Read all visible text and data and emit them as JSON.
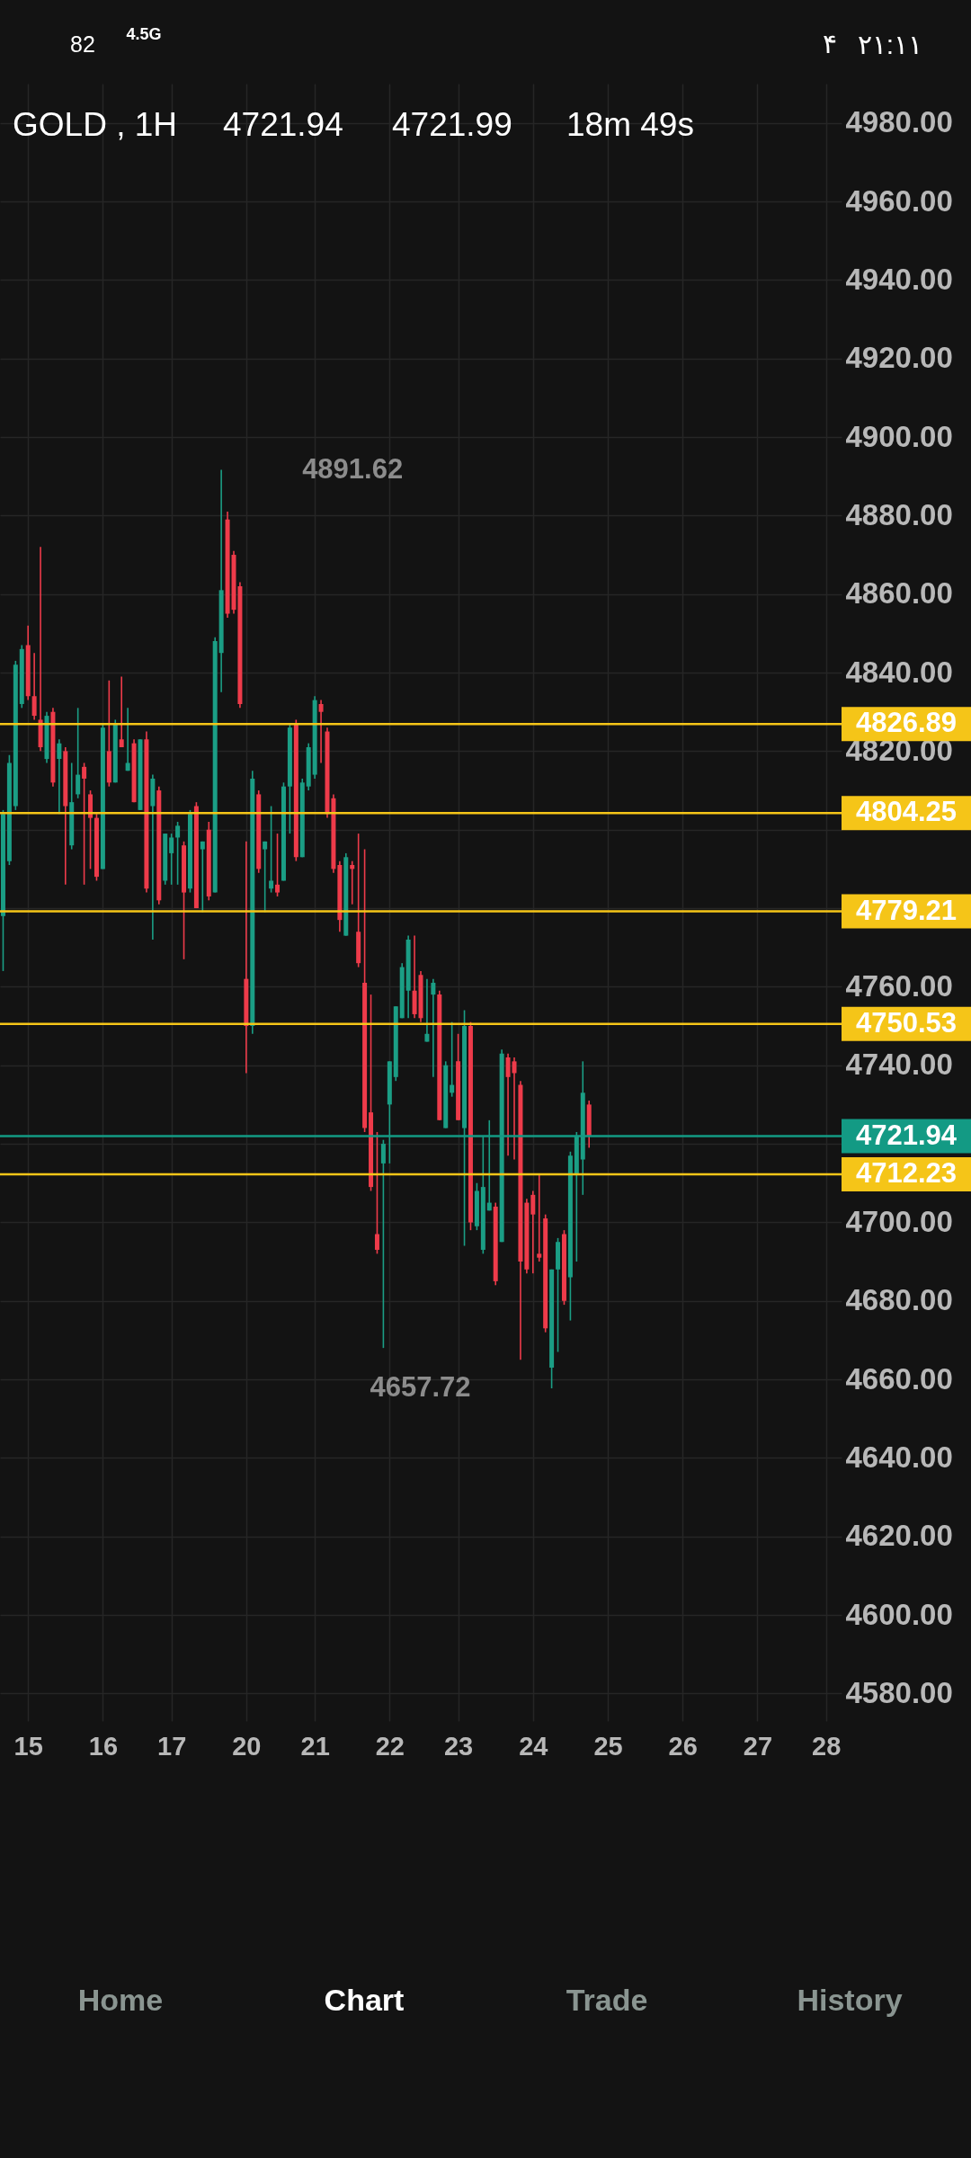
{
  "chart_data": {
    "type": "candlestick",
    "title": "GOLD , 1H",
    "annotations": [
      "4721.94",
      "4721.99",
      "18m 49s",
      "82",
      "4.5G",
      "۴",
      "۲۱:۱۱",
      "Home",
      "Chart",
      "Trade",
      "History",
      "4891.62",
      "4657.72"
    ],
    "categories": [
      null,
      null,
      null,
      null,
      "15",
      null,
      null,
      null,
      null,
      null,
      null,
      null,
      null,
      null,
      null,
      null,
      "16",
      null,
      null,
      null,
      null,
      null,
      null,
      null,
      null,
      null,
      null,
      "17",
      null,
      null,
      null,
      null,
      null,
      null,
      null,
      null,
      null,
      null,
      null,
      "20",
      null,
      null,
      null,
      null,
      null,
      null,
      null,
      null,
      null,
      null,
      "21",
      null,
      null,
      null,
      null,
      null,
      null,
      null,
      null,
      null,
      null,
      null,
      "22",
      null,
      null,
      null,
      null,
      null,
      null,
      null,
      null,
      null,
      null,
      "23",
      null,
      null,
      null,
      null,
      null,
      null,
      null,
      null,
      null,
      null,
      null,
      "24",
      null,
      null,
      null,
      null,
      null,
      null,
      null,
      null,
      null,
      null,
      null,
      "25",
      null,
      null,
      null,
      null,
      null,
      null,
      null,
      null,
      null,
      null,
      null,
      "26",
      null,
      null,
      null,
      null,
      null,
      null,
      null,
      null,
      null,
      null,
      null,
      "27",
      null,
      null,
      null,
      null,
      null,
      null,
      null,
      null,
      null,
      null,
      "28",
      null,
      null
    ],
    "ohlc": [
      [
        4778,
        4805,
        4764,
        4804
      ],
      [
        4792,
        4819,
        4791,
        4817
      ],
      [
        4806,
        4843,
        4805,
        4842
      ],
      [
        4832,
        4847,
        4831,
        4846
      ],
      [
        4847,
        4852,
        4833,
        4834
      ],
      [
        4834,
        4845,
        4828,
        4829
      ],
      [
        4828,
        4872,
        4820,
        4821
      ],
      [
        4818,
        4830,
        4817,
        4829
      ],
      [
        4830,
        4831,
        4811,
        4812
      ],
      [
        4818,
        4823,
        4804,
        4822
      ],
      [
        4820,
        4821,
        4786,
        4806
      ],
      [
        4796,
        4817,
        4795,
        4807
      ],
      [
        4809,
        4831,
        4808,
        4814
      ],
      [
        4816,
        4817,
        4786,
        4813
      ],
      [
        4809,
        4810,
        4790,
        4803
      ],
      [
        4803,
        4804,
        4787,
        4788
      ],
      [
        4790,
        4827,
        4790,
        4826
      ],
      [
        4820,
        4838,
        4811,
        4812
      ],
      [
        4812,
        4828,
        4812,
        4827
      ],
      [
        4823,
        4839,
        4821,
        4821
      ],
      [
        4815,
        4831,
        4815,
        4817
      ],
      [
        4822,
        4823,
        4807,
        4807
      ],
      [
        4805,
        4823,
        4805,
        4823
      ],
      [
        4823,
        4825,
        4784,
        4785
      ],
      [
        4806,
        4814,
        4772,
        4813
      ],
      [
        4810,
        4811,
        4781,
        4782
      ],
      [
        4787,
        4799,
        4786,
        4799
      ],
      [
        4794,
        4799,
        4786,
        4798
      ],
      [
        4798,
        4802,
        4786,
        4801
      ],
      [
        4796,
        4797,
        4767,
        4784
      ],
      [
        4785,
        4805,
        4784,
        4804
      ],
      [
        4806,
        4807,
        4780,
        4780
      ],
      [
        4795,
        4797,
        4779,
        4797
      ],
      [
        4800,
        4802,
        4782,
        4783
      ],
      [
        4784,
        4849,
        4784,
        4848
      ],
      [
        4845,
        4891.62,
        4835,
        4861
      ],
      [
        4879,
        4881,
        4854,
        4855
      ],
      [
        4870,
        4871,
        4855,
        4856
      ],
      [
        4862,
        4863,
        4831,
        4832
      ],
      [
        4762,
        4797,
        4738,
        4750
      ],
      [
        4750,
        4815,
        4748,
        4813
      ],
      [
        4809,
        4810,
        4789,
        4790
      ],
      [
        4795,
        4797,
        4779,
        4797
      ],
      [
        4785,
        4806,
        4784,
        4787
      ],
      [
        4786,
        4799,
        4783,
        4784
      ],
      [
        4787,
        4812,
        4787,
        4811
      ],
      [
        4811,
        4827,
        4799,
        4826
      ],
      [
        4827,
        4828,
        4792,
        4793
      ],
      [
        4793,
        4813,
        4793,
        4812
      ],
      [
        4811,
        4822,
        4810,
        4821
      ],
      [
        4814,
        4834,
        4813,
        4833
      ],
      [
        4832,
        4833,
        4817,
        4830
      ],
      [
        4825,
        4826,
        4803,
        4804
      ],
      [
        4808,
        4809,
        4789,
        4790
      ],
      [
        4791,
        4792,
        4774,
        4777
      ],
      [
        4773,
        4794,
        4773,
        4793
      ],
      [
        4791,
        4792,
        4781,
        4790
      ],
      [
        4774,
        4799,
        4765,
        4766
      ],
      [
        4761,
        4795,
        4723,
        4724
      ],
      [
        4728,
        4758,
        4708,
        4709
      ],
      [
        4697,
        4723,
        4692,
        4693
      ],
      [
        4715,
        4721,
        4668,
        4720
      ],
      [
        4730,
        4741,
        4715,
        4741
      ],
      [
        4737,
        4755,
        4736,
        4755
      ],
      [
        4752,
        4766,
        4752,
        4765
      ],
      [
        4759,
        4773,
        4752,
        4772
      ],
      [
        4759,
        4773,
        4752,
        4753
      ],
      [
        4763,
        4764,
        4751,
        4752
      ],
      [
        4746,
        4762,
        4746,
        4748
      ],
      [
        4758,
        4762,
        4737,
        4761
      ],
      [
        4758,
        4759,
        4726,
        4726
      ],
      [
        4724,
        4741,
        4724,
        4740
      ],
      [
        4733,
        4751,
        4732,
        4735
      ],
      [
        4741,
        4748,
        4726,
        4726
      ],
      [
        4724,
        4754,
        4694,
        4750
      ],
      [
        4750,
        4751,
        4698,
        4700
      ],
      [
        4699,
        4710,
        4698,
        4708
      ],
      [
        4693,
        4722,
        4692,
        4709
      ],
      [
        4703,
        4726,
        4703,
        4705
      ],
      [
        4704,
        4705,
        4684,
        4685
      ],
      [
        4695,
        4744,
        4695,
        4743
      ],
      [
        4742,
        4743,
        4717,
        4737
      ],
      [
        4741,
        4742,
        4716,
        4738
      ],
      [
        4735,
        4736,
        4665,
        4690
      ],
      [
        4705,
        4706,
        4687,
        4688
      ],
      [
        4707,
        4708,
        4687,
        4702
      ],
      [
        4692,
        4712,
        4690,
        4691
      ],
      [
        4701,
        4702,
        4672,
        4673
      ],
      [
        4663,
        4688,
        4657.72,
        4688
      ],
      [
        4688,
        4696,
        4667,
        4695
      ],
      [
        4697,
        4698,
        4679,
        4680
      ],
      [
        4686,
        4718,
        4675,
        4717
      ],
      [
        4712,
        4723,
        4690,
        4722
      ],
      [
        4716,
        4741,
        4707,
        4733
      ],
      [
        4730,
        4731,
        4719,
        4721.94
      ],
      null,
      null,
      null,
      null,
      null,
      null,
      null,
      null,
      null,
      null,
      null,
      null,
      null,
      null,
      null,
      null,
      null,
      null,
      null,
      null,
      null,
      null,
      null,
      null,
      null,
      null,
      null,
      null,
      null,
      null,
      null,
      null,
      null,
      null,
      null,
      null,
      null,
      null,
      null,
      null
    ],
    "colors": [
      "#1b9e85",
      "#1b9e85",
      "#1b9e85",
      "#1b9e85",
      "#ee3b4a",
      "#ee3b4a",
      "#ee3b4a",
      "#1b9e85",
      "#ee3b4a",
      "#1b9e85",
      "#ee3b4a",
      "#1b9e85",
      "#1b9e85",
      "#ee3b4a",
      "#ee3b4a",
      "#ee3b4a",
      "#1b9e85",
      "#ee3b4a",
      "#1b9e85",
      "#ee3b4a",
      "#1b9e85",
      "#ee3b4a",
      "#1b9e85",
      "#ee3b4a",
      "#1b9e85",
      "#ee3b4a",
      "#1b9e85",
      "#1b9e85",
      "#1b9e85",
      "#ee3b4a",
      "#1b9e85",
      "#ee3b4a",
      "#1b9e85",
      "#ee3b4a",
      "#1b9e85",
      "#1b9e85",
      "#ee3b4a",
      "#ee3b4a",
      "#ee3b4a",
      "#ee3b4a",
      "#1b9e85",
      "#ee3b4a",
      "#1b9e85",
      "#1b9e85",
      "#ee3b4a",
      "#1b9e85",
      "#1b9e85",
      "#ee3b4a",
      "#1b9e85",
      "#1b9e85",
      "#1b9e85",
      "#ee3b4a",
      "#ee3b4a",
      "#ee3b4a",
      "#ee3b4a",
      "#1b9e85",
      "#ee3b4a",
      "#ee3b4a",
      "#ee3b4a",
      "#ee3b4a",
      "#ee3b4a",
      "#1b9e85",
      "#1b9e85",
      "#1b9e85",
      "#1b9e85",
      "#1b9e85",
      "#ee3b4a",
      "#ee3b4a",
      "#1b9e85",
      "#1b9e85",
      "#ee3b4a",
      "#1b9e85",
      "#1b9e85",
      "#ee3b4a",
      "#1b9e85",
      "#ee3b4a",
      "#1b9e85",
      "#1b9e85",
      "#1b9e85",
      "#ee3b4a",
      "#1b9e85",
      "#ee3b4a",
      "#ee3b4a",
      "#ee3b4a",
      "#ee3b4a",
      "#ee3b4a",
      "#ee3b4a",
      "#ee3b4a",
      "#1b9e85",
      "#1b9e85",
      "#ee3b4a",
      "#1b9e85",
      "#1b9e85",
      "#1b9e85",
      "#ee3b4a",
      null,
      null,
      null,
      null,
      null,
      null,
      null,
      null,
      null,
      null,
      null,
      null,
      null,
      null,
      null,
      null,
      null,
      null,
      null,
      null,
      null,
      null,
      null,
      null,
      null,
      null,
      null,
      null,
      null,
      null,
      null,
      null,
      null,
      null,
      null,
      null,
      null,
      null,
      null,
      null
    ],
    "ylim": [
      4573,
      4990
    ],
    "yticks": [
      {
        "value": 4580,
        "label": "4580.00"
      },
      {
        "value": 4600,
        "label": "4600.00"
      },
      {
        "value": 4620,
        "label": "4620.00"
      },
      {
        "value": 4640,
        "label": "4640.00"
      },
      {
        "value": 4660,
        "label": "4660.00"
      },
      {
        "value": 4680,
        "label": "4680.00"
      },
      {
        "value": 4700,
        "label": "4700.00"
      },
      {
        "value": 4720,
        "label": null
      },
      {
        "value": 4740,
        "label": "4740.00"
      },
      {
        "value": 4760,
        "label": "4760.00"
      },
      {
        "value": 4780,
        "label": null
      },
      {
        "value": 4800,
        "label": null
      },
      {
        "value": 4820,
        "label": "4820.00"
      },
      {
        "value": 4840,
        "label": "4840.00"
      },
      {
        "value": 4860,
        "label": "4860.00"
      },
      {
        "value": 4880,
        "label": "4880.00"
      },
      {
        "value": 4900,
        "label": "4900.00"
      },
      {
        "value": 4920,
        "label": "4920.00"
      },
      {
        "value": 4940,
        "label": "4940.00"
      },
      {
        "value": 4960,
        "label": "4960.00"
      },
      {
        "value": 4980,
        "label": "4980.00"
      }
    ],
    "ref_lines": [
      {
        "axis": "y",
        "value": 4826.89,
        "label": "4826.89",
        "color": "#f5c518"
      },
      {
        "axis": "y",
        "value": 4804.25,
        "label": "4804.25",
        "color": "#f5c518"
      },
      {
        "axis": "y",
        "value": 4779.21,
        "label": "4779.21",
        "color": "#f5c518"
      },
      {
        "axis": "y",
        "value": 4750.53,
        "label": "4750.53",
        "color": "#f5c518"
      },
      {
        "axis": "y",
        "value": 4721.94,
        "label": "4721.94",
        "color": "#139a84"
      },
      {
        "axis": "y",
        "value": 4712.23,
        "label": "4712.23",
        "color": "#f5c518"
      }
    ],
    "grid": true
  }
}
